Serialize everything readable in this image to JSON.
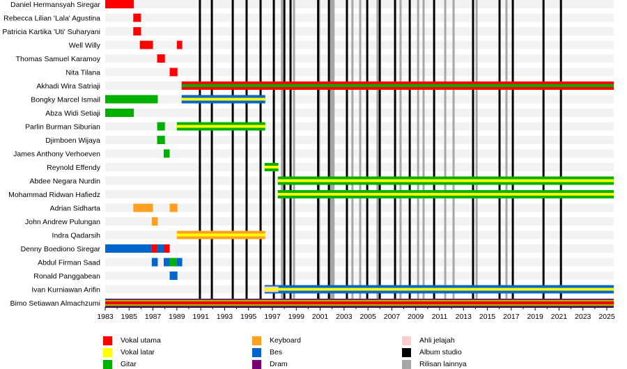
{
  "chart_data": {
    "type": "timeline",
    "xlim": [
      1983,
      2025.58
    ],
    "ticks": [
      "1983",
      "1985",
      "1987",
      "1989",
      "1991",
      "1993",
      "1995",
      "1997",
      "1999",
      "2001",
      "2003",
      "2005",
      "2007",
      "2009",
      "2011",
      "2013",
      "2015",
      "2017",
      "2019",
      "2021",
      "2023",
      "2025"
    ],
    "colors": {
      "vocal": "#ff0000",
      "backing": "#ffff00",
      "guitar": "#00b000",
      "keyboard": "#ffa020",
      "bass": "#0066cc",
      "drums": "#770077",
      "tour": "#ffcccc",
      "album": "#000000",
      "other": "#a6a6a6"
    },
    "members": [
      {
        "name": "Daniel Hermansyah Siregar",
        "bars": [
          {
            "start": 1983,
            "end": 1985.4,
            "colors": [
              "vocal"
            ]
          }
        ]
      },
      {
        "name": "Rebecca Lilian 'Lala' Agustina",
        "bars": [
          {
            "start": 1985.35,
            "end": 1986.0,
            "colors": [
              "vocal"
            ]
          }
        ]
      },
      {
        "name": "Patricia Kartika 'Uti' Suharyani",
        "bars": [
          {
            "start": 1985.35,
            "end": 1986.0,
            "colors": [
              "vocal"
            ]
          }
        ]
      },
      {
        "name": "Well Willy",
        "bars": [
          {
            "start": 1985.9,
            "end": 1987.0,
            "colors": [
              "vocal"
            ]
          },
          {
            "start": 1989.0,
            "end": 1989.45,
            "colors": [
              "vocal"
            ]
          }
        ]
      },
      {
        "name": "Thomas Samuel Karamoy",
        "bars": [
          {
            "start": 1987.35,
            "end": 1988.0,
            "colors": [
              "vocal"
            ]
          }
        ]
      },
      {
        "name": "Nita Tilana",
        "bars": [
          {
            "start": 1988.4,
            "end": 1989.05,
            "colors": [
              "vocal"
            ]
          }
        ]
      },
      {
        "name": "Akhadi Wira Satriaji",
        "bars": [
          {
            "start": 1989.4,
            "end": 2025.58,
            "colors": [
              "vocal",
              "guitar"
            ]
          }
        ]
      },
      {
        "name": "Bongky Marcel Ismail",
        "bars": [
          {
            "start": 1983,
            "end": 1987.4,
            "colors": [
              "guitar"
            ]
          },
          {
            "start": 1989.4,
            "end": 1996.4,
            "colors": [
              "bass",
              "backing"
            ]
          }
        ]
      },
      {
        "name": "Abza Widi Setiaji",
        "bars": [
          {
            "start": 1983,
            "end": 1985.4,
            "colors": [
              "guitar"
            ]
          }
        ]
      },
      {
        "name": "Parlin Burman Siburian",
        "bars": [
          {
            "start": 1987.35,
            "end": 1988.0,
            "colors": [
              "guitar"
            ]
          },
          {
            "start": 1989.0,
            "end": 1996.4,
            "colors": [
              "guitar",
              "backing"
            ]
          }
        ]
      },
      {
        "name": "Djimboen Wijaya",
        "bars": [
          {
            "start": 1987.35,
            "end": 1988.0,
            "colors": [
              "guitar"
            ]
          }
        ]
      },
      {
        "name": "James Anthony Verhoeven",
        "bars": [
          {
            "start": 1987.9,
            "end": 1988.4,
            "colors": [
              "guitar"
            ]
          }
        ]
      },
      {
        "name": "Reynold Effendy",
        "bars": [
          {
            "start": 1996.35,
            "end": 1997.5,
            "colors": [
              "guitar",
              "backing"
            ]
          }
        ]
      },
      {
        "name": "Abdee Negara Nurdin",
        "bars": [
          {
            "start": 1997.45,
            "end": 2025.58,
            "colors": [
              "guitar",
              "backing"
            ]
          }
        ]
      },
      {
        "name": "Mohammad Ridwan Hafiedz",
        "bars": [
          {
            "start": 1997.45,
            "end": 2025.58,
            "colors": [
              "guitar",
              "backing"
            ]
          }
        ]
      },
      {
        "name": "Adrian Sidharta",
        "bars": [
          {
            "start": 1985.35,
            "end": 1987.0,
            "colors": [
              "keyboard"
            ]
          },
          {
            "start": 1988.4,
            "end": 1989.05,
            "colors": [
              "keyboard"
            ]
          }
        ]
      },
      {
        "name": "John Andrew Pulungan",
        "bars": [
          {
            "start": 1986.9,
            "end": 1987.4,
            "colors": [
              "keyboard"
            ]
          }
        ]
      },
      {
        "name": "Indra Qadarsih",
        "bars": [
          {
            "start": 1989.0,
            "end": 1996.4,
            "colors": [
              "keyboard",
              "backing"
            ]
          }
        ]
      },
      {
        "name": "Denny Boediono Siregar",
        "bars": [
          {
            "start": 1983,
            "end": 1986.9,
            "colors": [
              "bass"
            ]
          },
          {
            "start": 1986.9,
            "end": 1987.35,
            "colors": [
              "vocal"
            ]
          },
          {
            "start": 1987.35,
            "end": 1987.9,
            "colors": [
              "bass"
            ]
          },
          {
            "start": 1987.9,
            "end": 1988.4,
            "colors": [
              "vocal"
            ]
          }
        ]
      },
      {
        "name": "Abdul Firman Saad",
        "bars": [
          {
            "start": 1986.9,
            "end": 1987.4,
            "colors": [
              "bass"
            ]
          },
          {
            "start": 1987.9,
            "end": 1988.4,
            "colors": [
              "bass"
            ]
          },
          {
            "start": 1988.4,
            "end": 1989.0,
            "colors": [
              "guitar"
            ]
          },
          {
            "start": 1989.0,
            "end": 1989.45,
            "colors": [
              "bass"
            ]
          }
        ]
      },
      {
        "name": "Ronald Panggabean",
        "bars": [
          {
            "start": 1988.4,
            "end": 1989.05,
            "colors": [
              "bass"
            ]
          }
        ]
      },
      {
        "name": "Ivan Kurniawan Arifin",
        "bars": [
          {
            "start": 1996.35,
            "end": 1997.5,
            "colors": [
              "bass",
              "tour",
              "backing"
            ]
          },
          {
            "start": 1997.5,
            "end": 2025.58,
            "colors": [
              "bass",
              "backing"
            ]
          }
        ]
      },
      {
        "name": "Bimo Setiawan Almachzumi",
        "bars": [
          {
            "start": 1983,
            "end": 2025.58,
            "colors": [
              "drums",
              "guitar",
              "backing",
              "vocal"
            ]
          }
        ]
      }
    ],
    "album_releases": [
      1990.93,
      1991.93,
      1993.68,
      1994.84,
      1996.01,
      1997.12,
      1998.0,
      1998.52,
      2000.83,
      2001.73,
      2003.24,
      2004.94,
      2005.99,
      2007.27,
      2008.5,
      2010.54,
      2013.8,
      2016.02,
      2017.13,
      2019.7,
      2021.16
    ],
    "other_releases": [
      1997.8,
      1998.81,
      2000.91,
      2001.85,
      2002.0,
      2002.12,
      2003.7,
      2004.35,
      2005.8,
      2007.73,
      2009.2,
      2009.66,
      2011.47,
      2012.17,
      2014.1,
      2016.6
    ],
    "legend": [
      {
        "key": "vocal",
        "label": "Vokal utama"
      },
      {
        "key": "backing",
        "label": "Vokal latar"
      },
      {
        "key": "guitar",
        "label": "Gitar"
      },
      {
        "key": "keyboard",
        "label": "Keyboard"
      },
      {
        "key": "bass",
        "label": "Bes"
      },
      {
        "key": "drums",
        "label": "Dram"
      },
      {
        "key": "tour",
        "label": "Ahli jelajah"
      },
      {
        "key": "album",
        "label": "Album studio"
      },
      {
        "key": "other",
        "label": "Rilisan lainnya"
      }
    ]
  }
}
